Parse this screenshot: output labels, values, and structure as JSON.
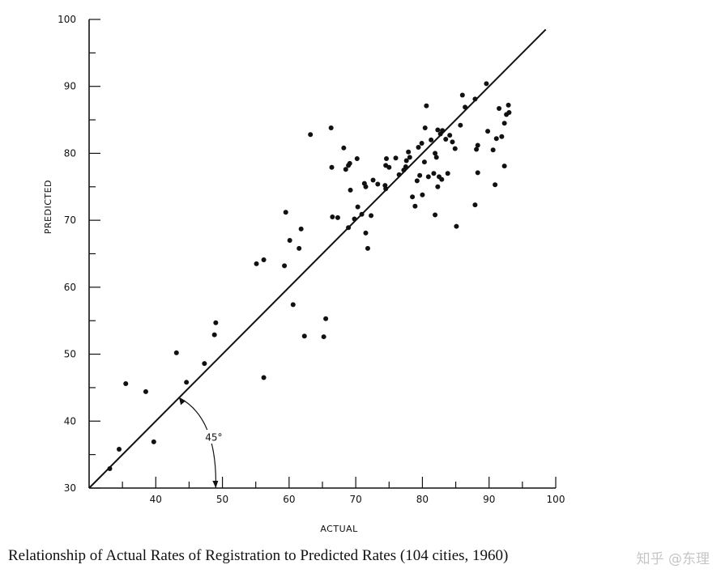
{
  "chart_data": {
    "type": "scatter",
    "title": "",
    "xlabel": "ACTUAL",
    "ylabel": "PREDICTED",
    "xlim": [
      30,
      100
    ],
    "ylim": [
      30,
      100
    ],
    "x_ticks": [
      40,
      50,
      60,
      70,
      80,
      90,
      100
    ],
    "y_ticks": [
      30,
      40,
      50,
      60,
      70,
      80,
      90,
      100
    ],
    "grid": false,
    "reference_line": {
      "type": "45-degree line y = x",
      "annotation": "45°"
    },
    "points": [
      [
        33.1,
        32.9
      ],
      [
        34.5,
        35.8
      ],
      [
        35.5,
        45.6
      ],
      [
        38.5,
        44.4
      ],
      [
        39.7,
        36.9
      ],
      [
        43.1,
        50.2
      ],
      [
        44.6,
        45.8
      ],
      [
        47.3,
        48.6
      ],
      [
        48.8,
        52.9
      ],
      [
        49.0,
        54.7
      ],
      [
        55.1,
        63.5
      ],
      [
        56.2,
        64.1
      ],
      [
        56.2,
        46.5
      ],
      [
        59.3,
        63.2
      ],
      [
        59.5,
        71.2
      ],
      [
        60.1,
        67.0
      ],
      [
        60.6,
        57.4
      ],
      [
        61.5,
        65.8
      ],
      [
        61.8,
        68.7
      ],
      [
        62.3,
        52.7
      ],
      [
        63.2,
        82.8
      ],
      [
        65.2,
        52.6
      ],
      [
        65.5,
        55.3
      ],
      [
        66.3,
        83.8
      ],
      [
        66.4,
        77.9
      ],
      [
        66.5,
        70.5
      ],
      [
        67.3,
        70.4
      ],
      [
        68.2,
        80.8
      ],
      [
        68.5,
        77.6
      ],
      [
        68.9,
        78.2
      ],
      [
        69.1,
        78.5
      ],
      [
        68.9,
        68.9
      ],
      [
        69.2,
        74.5
      ],
      [
        69.8,
        70.2
      ],
      [
        70.2,
        79.2
      ],
      [
        70.3,
        72.0
      ],
      [
        70.9,
        70.9
      ],
      [
        71.3,
        75.5
      ],
      [
        71.5,
        75.0
      ],
      [
        71.5,
        68.1
      ],
      [
        71.8,
        65.8
      ],
      [
        72.3,
        70.7
      ],
      [
        72.6,
        76.0
      ],
      [
        73.3,
        75.4
      ],
      [
        74.4,
        75.2
      ],
      [
        74.5,
        74.7
      ],
      [
        74.6,
        79.2
      ],
      [
        75.0,
        77.9
      ],
      [
        76.0,
        79.3
      ],
      [
        76.5,
        76.8
      ],
      [
        77.2,
        77.5
      ],
      [
        77.6,
        78.9
      ],
      [
        77.9,
        80.2
      ],
      [
        78.1,
        79.4
      ],
      [
        78.5,
        73.5
      ],
      [
        78.9,
        72.1
      ],
      [
        79.2,
        75.9
      ],
      [
        79.4,
        80.9
      ],
      [
        79.6,
        76.7
      ],
      [
        79.9,
        81.5
      ],
      [
        80.0,
        73.8
      ],
      [
        80.3,
        78.7
      ],
      [
        80.4,
        83.8
      ],
      [
        80.6,
        87.1
      ],
      [
        80.9,
        76.5
      ],
      [
        81.3,
        82.0
      ],
      [
        81.7,
        77.0
      ],
      [
        81.9,
        80.0
      ],
      [
        81.9,
        70.8
      ],
      [
        82.1,
        79.4
      ],
      [
        82.3,
        83.5
      ],
      [
        82.5,
        76.5
      ],
      [
        82.7,
        82.9
      ],
      [
        82.9,
        76.1
      ],
      [
        83.0,
        83.4
      ],
      [
        83.5,
        82.1
      ],
      [
        83.8,
        77.0
      ],
      [
        84.1,
        82.7
      ],
      [
        84.5,
        81.7
      ],
      [
        84.9,
        80.7
      ],
      [
        85.1,
        69.1
      ],
      [
        85.7,
        84.2
      ],
      [
        86.0,
        88.7
      ],
      [
        86.4,
        86.9
      ],
      [
        87.9,
        88.1
      ],
      [
        87.9,
        72.3
      ],
      [
        88.3,
        81.2
      ],
      [
        88.1,
        80.6
      ],
      [
        88.3,
        77.1
      ],
      [
        89.6,
        90.4
      ],
      [
        89.8,
        83.3
      ],
      [
        90.6,
        80.5
      ],
      [
        90.9,
        75.3
      ],
      [
        91.1,
        82.2
      ],
      [
        91.5,
        86.7
      ],
      [
        92.3,
        78.1
      ],
      [
        92.3,
        84.5
      ],
      [
        92.6,
        85.8
      ],
      [
        92.9,
        87.2
      ],
      [
        93.0,
        86.1
      ],
      [
        91.9,
        82.5
      ],
      [
        82.3,
        75.0
      ],
      [
        77.5,
        78.0
      ],
      [
        74.5,
        78.2
      ]
    ]
  },
  "caption": "Relationship of Actual Rates of Registration to Predicted Rates (104 cities, 1960)",
  "watermark": "知乎 @东理"
}
